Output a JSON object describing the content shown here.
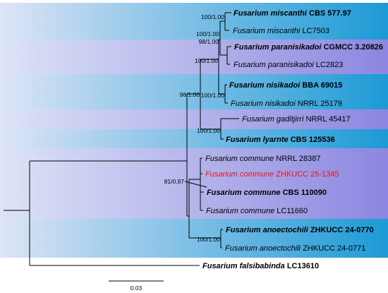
{
  "colors": {
    "band_light": "#dde4f6",
    "band_blue_edge": "#1c9ad6",
    "band_purple_edge": "#8c86e0",
    "highlight_text": "#e8111a",
    "branch": "#000000"
  },
  "tree": {
    "taxa": [
      {
        "genus": "Fusarium",
        "epithet": "miscanthi",
        "strain": "CBS 577.97",
        "bold": true,
        "color": "default"
      },
      {
        "genus": "Fusarium",
        "epithet": "miscanthi",
        "strain": "LC7503",
        "bold": false,
        "color": "default"
      },
      {
        "genus": "Fusarium",
        "epithet": "paranisikadoi",
        "strain": "CGMCC 3.20826",
        "bold": true,
        "color": "default"
      },
      {
        "genus": "Fusarium",
        "epithet": "paranisikadoi",
        "strain": "LC2823",
        "bold": false,
        "color": "default"
      },
      {
        "genus": "Fusarium",
        "epithet": "nisikadoi",
        "strain": "BBA 69015",
        "bold": true,
        "color": "default"
      },
      {
        "genus": "Fusarium",
        "epithet": "nisikadoi",
        "strain": "NRRL 25179",
        "bold": false,
        "color": "default"
      },
      {
        "genus": "Fusarium",
        "epithet": "gaditjirri",
        "strain": "NRRL 45417",
        "bold": false,
        "color": "default"
      },
      {
        "genus": "Fusarium",
        "epithet": "lyarnte",
        "strain": "CBS 125536",
        "bold": true,
        "color": "default"
      },
      {
        "genus": "Fusarium",
        "epithet": "commune",
        "strain": "NRRL 28387",
        "bold": false,
        "color": "default"
      },
      {
        "genus": "Fusarium",
        "epithet": "commune",
        "strain": "ZHKUCC 25-1345",
        "bold": false,
        "color": "highlight"
      },
      {
        "genus": "Fusarium",
        "epithet": "commune",
        "strain": "CBS 110090",
        "bold": true,
        "color": "default"
      },
      {
        "genus": "Fusarium",
        "epithet": "commune",
        "strain": "LC11660",
        "bold": false,
        "color": "default"
      },
      {
        "genus": "Fusarium",
        "epithet": "anoectochili",
        "strain": "ZHKUCC 24-0770",
        "bold": true,
        "color": "default"
      },
      {
        "genus": "Fusarium",
        "epithet": "anoectochili",
        "strain": "ZHKUCC 24-0771",
        "bold": false,
        "color": "default"
      },
      {
        "genus": "Fusarium",
        "epithet": "falsibabinda",
        "strain": "LC13610",
        "bold": true,
        "color": "default"
      }
    ],
    "support_labels": [
      "100/1.00",
      "100/1.00",
      "98/1.00",
      "100/1.00",
      "100/1.00",
      "98/1.00",
      "100/1.00",
      "81/0.97",
      "100/1.00"
    ],
    "scale_bar": {
      "label": "0.03"
    }
  }
}
